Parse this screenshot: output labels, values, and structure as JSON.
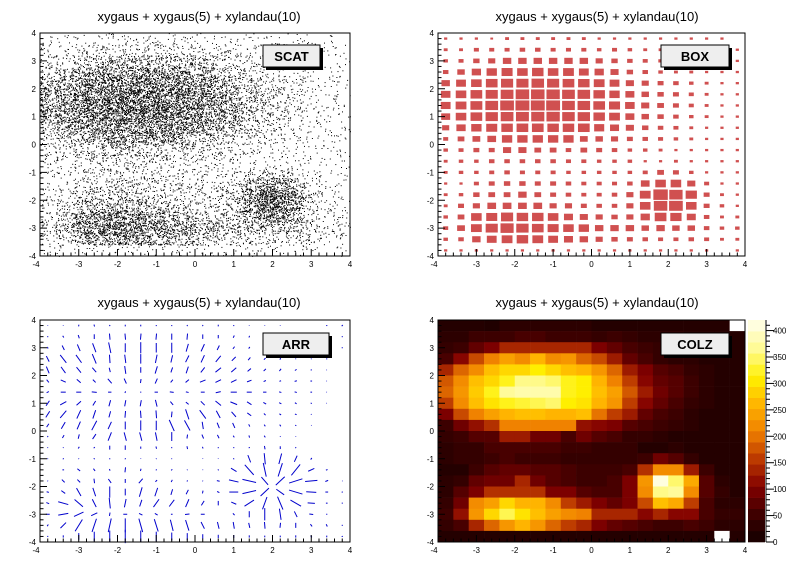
{
  "chart_data": {
    "type": "heatmap",
    "title": "xygaus + xygaus(5) + xylandau(10)",
    "xlim": [
      -4,
      4
    ],
    "ylim": [
      -4,
      4
    ],
    "x_ticks": [
      "-4",
      "-3",
      "-2",
      "-1",
      "0",
      "1",
      "2",
      "3",
      "4"
    ],
    "y_ticks": [
      "-4",
      "-3",
      "-2",
      "-1",
      "0",
      "1",
      "2",
      "3",
      "4"
    ],
    "bins": 20,
    "z_range": [
      0,
      420
    ],
    "z_ticks": [
      "0",
      "50",
      "100",
      "150",
      "200",
      "250",
      "300",
      "350",
      "400"
    ],
    "panels": [
      {
        "option": "SCAT",
        "title": "xygaus + xygaus(5) + xylandau(10)"
      },
      {
        "option": "BOX",
        "title": "xygaus + xygaus(5) + xylandau(10)"
      },
      {
        "option": "ARR",
        "title": "xygaus + xygaus(5) + xylandau(10)"
      },
      {
        "option": "COLZ",
        "title": "xygaus + xygaus(5) + xylandau(10)"
      }
    ],
    "counts_rows_top_to_bottom": [
      [
        20,
        20,
        20,
        15,
        30,
        30,
        30,
        30,
        30,
        30,
        20,
        20,
        20,
        20,
        20,
        20,
        20,
        20,
        20,
        0
      ],
      [
        30,
        30,
        50,
        50,
        50,
        60,
        60,
        50,
        50,
        50,
        40,
        50,
        40,
        30,
        30,
        30,
        20,
        20,
        20,
        20
      ],
      [
        40,
        50,
        80,
        100,
        140,
        140,
        140,
        140,
        140,
        140,
        100,
        80,
        60,
        50,
        40,
        30,
        30,
        20,
        0,
        20
      ],
      [
        60,
        110,
        170,
        210,
        240,
        220,
        260,
        220,
        230,
        190,
        170,
        130,
        80,
        60,
        40,
        30,
        30,
        20,
        20,
        20
      ],
      [
        140,
        190,
        220,
        270,
        290,
        290,
        310,
        290,
        270,
        260,
        230,
        190,
        130,
        100,
        70,
        60,
        40,
        30,
        20,
        20
      ],
      [
        180,
        220,
        270,
        290,
        320,
        360,
        360,
        350,
        320,
        310,
        260,
        210,
        160,
        110,
        80,
        70,
        50,
        30,
        20,
        20
      ],
      [
        190,
        230,
        280,
        320,
        370,
        380,
        380,
        380,
        320,
        310,
        270,
        240,
        180,
        130,
        90,
        70,
        50,
        30,
        20,
        20
      ],
      [
        160,
        220,
        270,
        300,
        320,
        330,
        340,
        350,
        310,
        300,
        260,
        230,
        160,
        110,
        80,
        60,
        40,
        30,
        20,
        20
      ],
      [
        100,
        170,
        210,
        240,
        260,
        270,
        270,
        260,
        260,
        270,
        200,
        160,
        130,
        80,
        60,
        50,
        30,
        20,
        20,
        20
      ],
      [
        50,
        90,
        120,
        150,
        210,
        210,
        210,
        210,
        210,
        120,
        110,
        100,
        70,
        60,
        50,
        40,
        30,
        20,
        20,
        20
      ],
      [
        40,
        50,
        70,
        70,
        130,
        130,
        90,
        90,
        60,
        90,
        70,
        60,
        40,
        40,
        30,
        20,
        20,
        20,
        20,
        20
      ],
      [
        30,
        40,
        40,
        60,
        60,
        60,
        60,
        60,
        50,
        50,
        40,
        40,
        40,
        20,
        20,
        30,
        20,
        20,
        20,
        20
      ],
      [
        30,
        40,
        40,
        50,
        60,
        50,
        50,
        50,
        40,
        40,
        40,
        40,
        40,
        50,
        90,
        70,
        40,
        20,
        20,
        20
      ],
      [
        20,
        20,
        50,
        70,
        80,
        80,
        70,
        70,
        60,
        50,
        50,
        50,
        60,
        150,
        220,
        220,
        130,
        50,
        20,
        20
      ],
      [
        30,
        40,
        80,
        90,
        90,
        140,
        90,
        70,
        60,
        50,
        50,
        60,
        100,
        230,
        410,
        350,
        250,
        70,
        30,
        20
      ],
      [
        30,
        70,
        100,
        150,
        150,
        150,
        150,
        100,
        100,
        70,
        60,
        60,
        100,
        220,
        360,
        370,
        220,
        70,
        40,
        20
      ],
      [
        40,
        90,
        220,
        240,
        290,
        260,
        260,
        220,
        160,
        130,
        100,
        80,
        100,
        170,
        270,
        250,
        160,
        60,
        30,
        30
      ],
      [
        50,
        120,
        230,
        290,
        340,
        300,
        270,
        240,
        220,
        210,
        140,
        140,
        140,
        110,
        140,
        110,
        110,
        60,
        40,
        40
      ],
      [
        40,
        60,
        140,
        190,
        230,
        260,
        230,
        190,
        160,
        140,
        100,
        80,
        70,
        60,
        50,
        50,
        60,
        50,
        30,
        30
      ],
      [
        20,
        20,
        20,
        20,
        20,
        20,
        20,
        20,
        20,
        20,
        20,
        20,
        20,
        20,
        20,
        20,
        20,
        20,
        0,
        20
      ]
    ]
  },
  "colors": {
    "box": "#d05050",
    "arrow": "#0000cc",
    "scatter": "#000000"
  }
}
